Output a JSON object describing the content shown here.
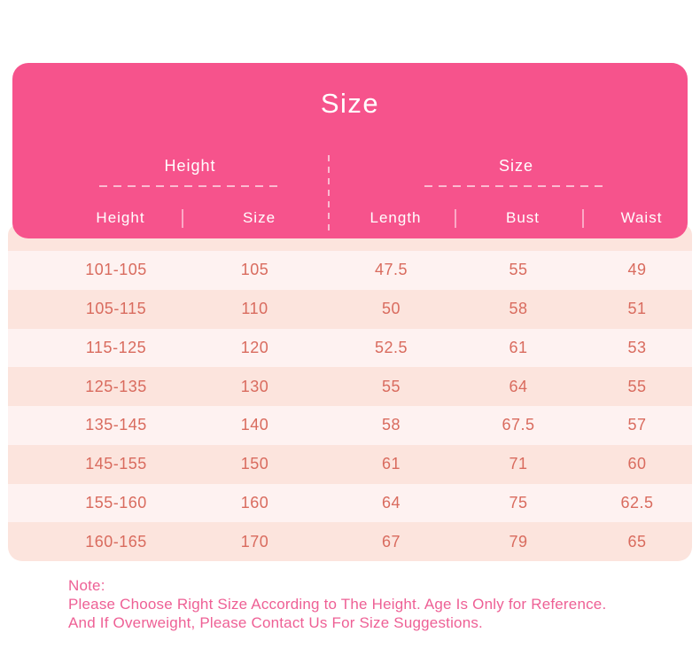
{
  "header": {
    "title": "Size"
  },
  "chart_data": {
    "type": "table",
    "title": "Size",
    "column_groups": [
      {
        "label": "Height",
        "columns": [
          "Height",
          "Size"
        ]
      },
      {
        "label": "Size",
        "columns": [
          "Length",
          "Bust",
          "Waist"
        ]
      }
    ],
    "columns": [
      "Height",
      "Size",
      "Length",
      "Bust",
      "Waist"
    ],
    "rows": [
      [
        "101-105",
        "105",
        "47.5",
        "55",
        "49"
      ],
      [
        "105-115",
        "110",
        "50",
        "58",
        "51"
      ],
      [
        "115-125",
        "120",
        "52.5",
        "61",
        "53"
      ],
      [
        "125-135",
        "130",
        "55",
        "64",
        "55"
      ],
      [
        "135-145",
        "140",
        "58",
        "67.5",
        "57"
      ],
      [
        "145-155",
        "150",
        "61",
        "71",
        "60"
      ],
      [
        "155-160",
        "160",
        "64",
        "75",
        "62.5"
      ],
      [
        "160-165",
        "170",
        "67",
        "79",
        "65"
      ]
    ]
  },
  "note": {
    "label": "Note:",
    "lines": [
      "Please Choose Right Size According to The Height. Age Is Only for Reference.",
      "And If Overweight, Please Contact Us For Size Suggestions."
    ]
  },
  "colors": {
    "header_pink": "#f6538c",
    "panel_salmon": "#fce4dd",
    "row_light": "#fef2f1",
    "data_text": "#d96b5e",
    "note_text": "#ee6095",
    "header_text": "#ffffff"
  }
}
